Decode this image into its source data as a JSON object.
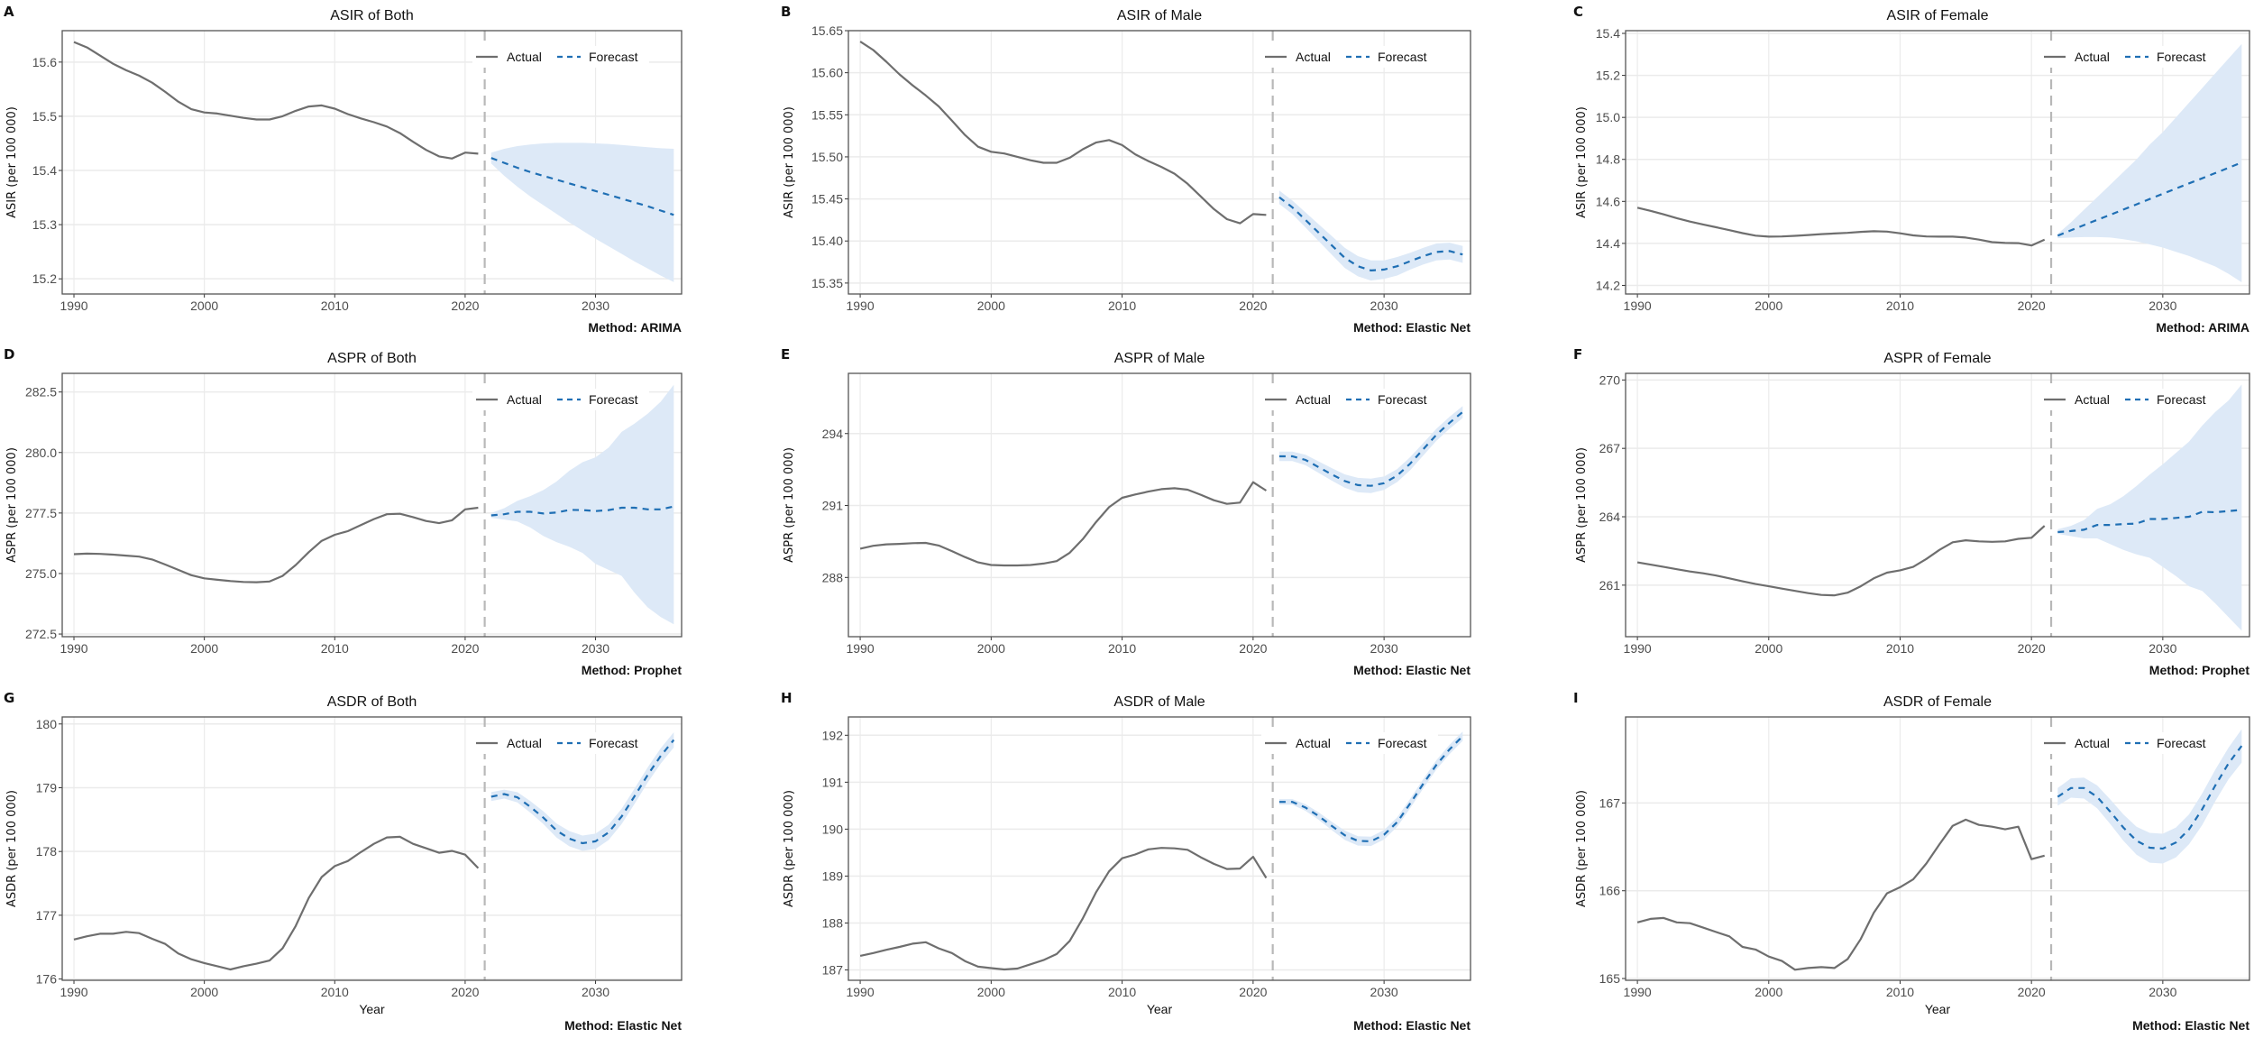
{
  "colors": {
    "actual": "#6e6e6e",
    "forecast": "#1f6fb4",
    "band": "#dde9f7",
    "divider": "#b8b8b8",
    "grid": "#ebebeb",
    "border": "#555555"
  },
  "xlim": [
    1989.1,
    2036.6
  ],
  "xticks": [
    1990,
    2000,
    2010,
    2020,
    2030
  ],
  "divider_year": 2021.5,
  "chart_data": [
    {
      "type": "line",
      "panel": "A",
      "title": "ASIR of Both",
      "ylabel": "ASIR (per 100 000)",
      "xlabel": "",
      "method": "Method: ARIMA",
      "legend": [
        "Actual",
        "Forecast"
      ],
      "ylim": [
        15.172,
        15.658
      ],
      "yticks": [
        "15.2",
        "15.3",
        "15.4",
        "15.5",
        "15.6"
      ],
      "actual": {
        "start_year": 1990,
        "values": [
          15.637,
          15.627,
          15.612,
          15.597,
          15.585,
          15.575,
          15.562,
          15.545,
          15.527,
          15.513,
          15.507,
          15.505,
          15.501,
          15.497,
          15.494,
          15.494,
          15.5,
          15.51,
          15.518,
          15.52,
          15.514,
          15.504,
          15.496,
          15.489,
          15.481,
          15.469,
          15.453,
          15.438,
          15.426,
          15.422,
          15.433,
          15.431
        ]
      },
      "forecast": {
        "start_year": 2022,
        "values": [
          15.423,
          15.414,
          15.405,
          15.397,
          15.39,
          15.383,
          15.376,
          15.369,
          15.362,
          15.355,
          15.348,
          15.341,
          15.334,
          15.326,
          15.318
        ],
        "lower": [
          15.413,
          15.39,
          15.37,
          15.352,
          15.336,
          15.32,
          15.304,
          15.289,
          15.274,
          15.26,
          15.246,
          15.232,
          15.219,
          15.206,
          15.194
        ],
        "upper": [
          15.433,
          15.44,
          15.445,
          15.448,
          15.45,
          15.451,
          15.451,
          15.451,
          15.45,
          15.449,
          15.447,
          15.445,
          15.443,
          15.441,
          15.44
        ]
      }
    },
    {
      "type": "line",
      "panel": "B",
      "title": "ASIR of Male",
      "ylabel": "ASIR (per 100 000)",
      "xlabel": "",
      "method": "Method: Elastic Net",
      "legend": [
        "Actual",
        "Forecast"
      ],
      "ylim": [
        15.337,
        15.65
      ],
      "yticks": [
        "15.35",
        "15.40",
        "15.45",
        "15.50",
        "15.55",
        "15.60",
        "15.65"
      ],
      "actual": {
        "start_year": 1990,
        "values": [
          15.637,
          15.627,
          15.613,
          15.598,
          15.585,
          15.573,
          15.56,
          15.543,
          15.526,
          15.512,
          15.506,
          15.504,
          15.5,
          15.496,
          15.493,
          15.493,
          15.499,
          15.509,
          15.517,
          15.52,
          15.514,
          15.503,
          15.495,
          15.488,
          15.48,
          15.468,
          15.453,
          15.438,
          15.426,
          15.421,
          15.432,
          15.431
        ]
      },
      "forecast": {
        "start_year": 2022,
        "values": [
          15.452,
          15.44,
          15.425,
          15.41,
          15.395,
          15.38,
          15.37,
          15.365,
          15.366,
          15.37,
          15.376,
          15.382,
          15.387,
          15.388,
          15.384
        ],
        "halfwidth": [
          0.008,
          0.008,
          0.009,
          0.01,
          0.011,
          0.012,
          0.012,
          0.012,
          0.011,
          0.011,
          0.01,
          0.01,
          0.01,
          0.01,
          0.01
        ]
      }
    },
    {
      "type": "line",
      "panel": "C",
      "title": "ASIR of Female",
      "ylabel": "ASIR (per 100 000)",
      "xlabel": "",
      "method": "Method: ARIMA",
      "legend": [
        "Actual",
        "Forecast"
      ],
      "ylim": [
        14.159,
        15.413
      ],
      "yticks": [
        "14.2",
        "14.4",
        "14.6",
        "14.8",
        "15.0",
        "15.2",
        "15.4"
      ],
      "actual": {
        "start_year": 1990,
        "values": [
          14.57,
          14.555,
          14.538,
          14.52,
          14.504,
          14.49,
          14.477,
          14.463,
          14.449,
          14.437,
          14.432,
          14.433,
          14.436,
          14.44,
          14.444,
          14.447,
          14.45,
          14.455,
          14.458,
          14.456,
          14.448,
          14.438,
          14.433,
          14.432,
          14.432,
          14.428,
          14.418,
          14.406,
          14.402,
          14.401,
          14.39,
          14.418
        ]
      },
      "forecast": {
        "start_year": 2022,
        "values": [
          14.437,
          14.462,
          14.487,
          14.512,
          14.536,
          14.561,
          14.586,
          14.611,
          14.636,
          14.661,
          14.686,
          14.71,
          14.735,
          14.76,
          14.785
        ],
        "lower": [
          14.425,
          14.428,
          14.43,
          14.43,
          14.428,
          14.42,
          14.41,
          14.395,
          14.38,
          14.36,
          14.34,
          14.315,
          14.29,
          14.255,
          14.215
        ],
        "upper": [
          14.445,
          14.5,
          14.56,
          14.62,
          14.68,
          14.74,
          14.8,
          14.87,
          14.93,
          15.0,
          15.07,
          15.14,
          15.21,
          15.28,
          15.35
        ]
      }
    },
    {
      "type": "line",
      "panel": "D",
      "title": "ASPR of Both",
      "ylabel": "ASPR (per 100 000)",
      "xlabel": "",
      "method": "Method: Prophet",
      "legend": [
        "Actual",
        "Forecast"
      ],
      "ylim": [
        272.39,
        283.27
      ],
      "yticks": [
        "272.5",
        "275.0",
        "277.5",
        "280.0",
        "282.5"
      ],
      "actual": {
        "start_year": 1990,
        "values": [
          275.8,
          275.82,
          275.81,
          275.78,
          275.74,
          275.7,
          275.58,
          275.37,
          275.15,
          274.93,
          274.8,
          274.74,
          274.69,
          274.65,
          274.64,
          274.67,
          274.9,
          275.35,
          275.88,
          276.35,
          276.6,
          276.75,
          277.0,
          277.25,
          277.45,
          277.47,
          277.33,
          277.17,
          277.08,
          277.2,
          277.65,
          277.72
        ]
      },
      "forecast": {
        "start_year": 2022,
        "values": [
          277.4,
          277.45,
          277.55,
          277.55,
          277.48,
          277.52,
          277.63,
          277.62,
          277.58,
          277.62,
          277.72,
          277.72,
          277.65,
          277.65,
          277.77
        ],
        "lower": [
          277.3,
          277.23,
          277.15,
          276.9,
          276.55,
          276.3,
          276.1,
          275.85,
          275.4,
          275.15,
          274.9,
          274.2,
          273.6,
          273.2,
          272.9
        ],
        "upper": [
          277.5,
          277.7,
          278.0,
          278.2,
          278.45,
          278.8,
          279.25,
          279.6,
          279.8,
          280.2,
          280.85,
          281.2,
          281.6,
          282.1,
          282.8
        ]
      }
    },
    {
      "type": "line",
      "panel": "E",
      "title": "ASPR of Male",
      "ylabel": "ASPR (per 100 000)",
      "xlabel": "",
      "method": "Method: Elastic Net",
      "legend": [
        "Actual",
        "Forecast"
      ],
      "ylim": [
        285.53,
        296.51
      ],
      "yticks": [
        "288",
        "291",
        "294"
      ],
      "actual": {
        "start_year": 1990,
        "values": [
          289.2,
          289.32,
          289.38,
          289.4,
          289.43,
          289.44,
          289.33,
          289.1,
          288.85,
          288.63,
          288.52,
          288.5,
          288.5,
          288.52,
          288.58,
          288.68,
          289.03,
          289.6,
          290.3,
          290.93,
          291.32,
          291.46,
          291.58,
          291.68,
          291.72,
          291.66,
          291.45,
          291.22,
          291.07,
          291.12,
          291.97,
          291.62
        ]
      },
      "forecast": {
        "start_year": 2022,
        "values": [
          293.05,
          293.05,
          292.9,
          292.6,
          292.3,
          292.02,
          291.85,
          291.82,
          291.93,
          292.25,
          292.75,
          293.35,
          293.95,
          294.45,
          294.9
        ],
        "halfwidth": [
          0.2,
          0.2,
          0.22,
          0.24,
          0.26,
          0.28,
          0.3,
          0.3,
          0.28,
          0.27,
          0.27,
          0.26,
          0.25,
          0.25,
          0.25
        ]
      }
    },
    {
      "type": "line",
      "panel": "F",
      "title": "ASPR of Female",
      "ylabel": "ASPR (per 100 000)",
      "xlabel": "",
      "method": "Method: Prophet",
      "legend": [
        "Actual",
        "Forecast"
      ],
      "ylim": [
        258.74,
        270.29
      ],
      "yticks": [
        "261",
        "264",
        "267",
        "270"
      ],
      "actual": {
        "start_year": 1990,
        "values": [
          262.0,
          261.9,
          261.8,
          261.7,
          261.6,
          261.52,
          261.42,
          261.3,
          261.17,
          261.05,
          260.95,
          260.85,
          260.75,
          260.65,
          260.57,
          260.55,
          260.67,
          260.95,
          261.3,
          261.55,
          261.65,
          261.8,
          262.15,
          262.55,
          262.88,
          262.97,
          262.92,
          262.9,
          262.92,
          263.03,
          263.08,
          263.6
        ]
      },
      "forecast": {
        "start_year": 2022,
        "values": [
          263.33,
          263.37,
          263.43,
          263.64,
          263.64,
          263.68,
          263.7,
          263.9,
          263.9,
          263.95,
          264.0,
          264.22,
          264.2,
          264.25,
          264.3
        ],
        "lower": [
          263.25,
          263.15,
          263.05,
          263.05,
          262.8,
          262.55,
          262.35,
          262.2,
          261.8,
          261.4,
          260.95,
          260.75,
          260.2,
          259.6,
          259.0
        ],
        "upper": [
          263.45,
          263.6,
          263.85,
          264.35,
          264.55,
          264.9,
          265.35,
          265.85,
          266.3,
          266.8,
          267.3,
          268.0,
          268.6,
          269.1,
          269.8
        ]
      }
    },
    {
      "type": "line",
      "panel": "G",
      "title": "ASDR of Both",
      "ylabel": "ASDR (per 100 000)",
      "xlabel": "Year",
      "method": "Method: Elastic Net",
      "legend": [
        "Actual",
        "Forecast"
      ],
      "ylim": [
        175.98,
        180.11
      ],
      "yticks": [
        "176",
        "177",
        "178",
        "179",
        "180"
      ],
      "actual": {
        "start_year": 1990,
        "values": [
          176.62,
          176.67,
          176.71,
          176.71,
          176.74,
          176.72,
          176.63,
          176.55,
          176.4,
          176.31,
          176.25,
          176.2,
          176.15,
          176.2,
          176.24,
          176.29,
          176.48,
          176.83,
          177.27,
          177.6,
          177.77,
          177.85,
          177.99,
          178.12,
          178.22,
          178.23,
          178.12,
          178.05,
          177.98,
          178.01,
          177.95,
          177.74
        ]
      },
      "forecast": {
        "start_year": 2022,
        "values": [
          178.86,
          178.9,
          178.85,
          178.7,
          178.53,
          178.33,
          178.2,
          178.13,
          178.16,
          178.3,
          178.55,
          178.87,
          179.2,
          179.5,
          179.75
        ],
        "halfwidth": [
          0.07,
          0.07,
          0.08,
          0.09,
          0.1,
          0.11,
          0.12,
          0.12,
          0.12,
          0.12,
          0.12,
          0.12,
          0.12,
          0.12,
          0.12
        ]
      }
    },
    {
      "type": "line",
      "panel": "H",
      "title": "ASDR of Male",
      "ylabel": "ASDR (per 100 000)",
      "xlabel": "Year",
      "method": "Method: Elastic Net",
      "legend": [
        "Actual",
        "Forecast"
      ],
      "ylim": [
        186.78,
        192.39
      ],
      "yticks": [
        "187",
        "188",
        "189",
        "190",
        "191",
        "192"
      ],
      "actual": {
        "start_year": 1990,
        "values": [
          187.3,
          187.36,
          187.43,
          187.49,
          187.56,
          187.59,
          187.46,
          187.36,
          187.19,
          187.07,
          187.04,
          187.01,
          187.03,
          187.12,
          187.21,
          187.34,
          187.62,
          188.1,
          188.65,
          189.1,
          189.38,
          189.46,
          189.57,
          189.6,
          189.59,
          189.56,
          189.4,
          189.26,
          189.15,
          189.16,
          189.41,
          188.96
        ]
      },
      "forecast": {
        "start_year": 2022,
        "values": [
          190.58,
          190.58,
          190.46,
          190.28,
          190.07,
          189.87,
          189.75,
          189.74,
          189.88,
          190.15,
          190.55,
          190.97,
          191.37,
          191.7,
          191.98
        ],
        "halfwidth": [
          0.06,
          0.06,
          0.07,
          0.08,
          0.09,
          0.1,
          0.1,
          0.1,
          0.1,
          0.1,
          0.1,
          0.1,
          0.1,
          0.1,
          0.1
        ]
      }
    },
    {
      "type": "line",
      "panel": "I",
      "title": "ASDR of Female",
      "ylabel": "ASDR (per 100 000)",
      "xlabel": "Year",
      "method": "Method: Elastic Net",
      "legend": [
        "Actual",
        "Forecast"
      ],
      "ylim": [
        164.98,
        167.98
      ],
      "yticks": [
        "165",
        "166",
        "167"
      ],
      "actual": {
        "start_year": 1990,
        "values": [
          165.64,
          165.68,
          165.69,
          165.64,
          165.63,
          165.58,
          165.53,
          165.48,
          165.36,
          165.33,
          165.25,
          165.2,
          165.1,
          165.12,
          165.13,
          165.12,
          165.22,
          165.45,
          165.75,
          165.97,
          166.04,
          166.13,
          166.31,
          166.53,
          166.74,
          166.81,
          166.75,
          166.73,
          166.7,
          166.73,
          166.36,
          166.4
        ]
      },
      "forecast": {
        "start_year": 2022,
        "values": [
          167.07,
          167.17,
          167.17,
          167.07,
          166.9,
          166.72,
          166.57,
          166.49,
          166.48,
          166.55,
          166.7,
          166.93,
          167.2,
          167.45,
          167.65
        ],
        "halfwidth": [
          0.1,
          0.11,
          0.12,
          0.13,
          0.14,
          0.15,
          0.16,
          0.17,
          0.17,
          0.17,
          0.17,
          0.18,
          0.18,
          0.18,
          0.19
        ]
      }
    }
  ]
}
